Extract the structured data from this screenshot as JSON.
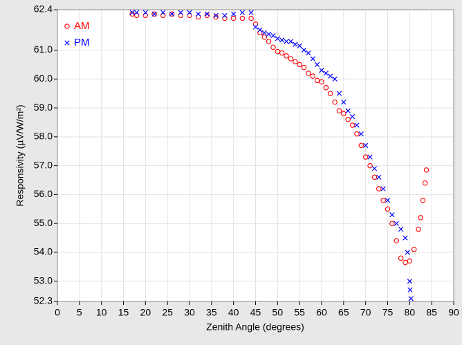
{
  "chart_data": {
    "type": "scatter",
    "xlabel": "Zenith Angle (degrees)",
    "ylabel": "Responsivity (µV/W/m²)",
    "xlim": [
      0,
      90
    ],
    "ylim": [
      52.3,
      62.4
    ],
    "xticks": [
      0,
      5,
      10,
      15,
      20,
      25,
      30,
      35,
      40,
      45,
      50,
      55,
      60,
      65,
      70,
      75,
      80,
      85,
      90
    ],
    "yticks": [
      52.3,
      {
        "value": 53,
        "label": "53.0"
      },
      {
        "value": 54,
        "label": "54.0"
      },
      {
        "value": 55,
        "label": "55.0"
      },
      {
        "value": 56,
        "label": "56.0"
      },
      {
        "value": 57,
        "label": "57.0"
      },
      {
        "value": 58,
        "label": "58.0"
      },
      {
        "value": 59,
        "label": "59.0"
      },
      {
        "value": 60,
        "label": "60.0"
      },
      {
        "value": 61,
        "label": "61.0"
      },
      62.4
    ],
    "grid": true,
    "legend": "upper-left",
    "series": [
      {
        "name": "AM",
        "color": "#ff0000",
        "marker": "circle",
        "x": [
          17,
          18,
          20,
          22,
          24,
          26,
          28,
          30,
          32,
          34,
          36,
          38,
          40,
          42,
          44,
          45,
          46,
          47,
          48,
          49,
          50,
          51,
          52,
          53,
          54,
          55,
          56,
          57,
          58,
          59,
          60,
          61,
          62,
          63,
          64,
          65,
          66,
          67,
          68,
          69,
          70,
          71,
          72,
          73,
          74,
          75,
          76,
          77,
          78,
          79,
          80,
          81,
          82,
          82.5,
          83,
          83.5,
          83.8
        ],
        "values": [
          62.25,
          62.2,
          62.2,
          62.25,
          62.2,
          62.25,
          62.2,
          62.2,
          62.15,
          62.2,
          62.15,
          62.1,
          62.1,
          62.1,
          62.1,
          61.9,
          61.6,
          61.45,
          61.3,
          61.1,
          60.95,
          60.9,
          60.8,
          60.7,
          60.6,
          60.5,
          60.4,
          60.2,
          60.1,
          59.95,
          59.9,
          59.7,
          59.5,
          59.2,
          58.9,
          58.8,
          58.6,
          58.4,
          58.1,
          57.7,
          57.3,
          57.0,
          56.6,
          56.2,
          55.8,
          55.5,
          55.0,
          54.4,
          53.8,
          53.65,
          53.7,
          54.1,
          54.8,
          55.2,
          55.8,
          56.4,
          56.85
        ]
      },
      {
        "name": "PM",
        "color": "#0000ff",
        "marker": "x",
        "x": [
          17,
          18,
          20,
          22,
          24,
          26,
          28,
          30,
          32,
          34,
          36,
          38,
          40,
          42,
          44,
          45,
          46,
          47,
          48,
          49,
          50,
          51,
          52,
          53,
          54,
          55,
          56,
          57,
          58,
          59,
          60,
          61,
          62,
          63,
          64,
          65,
          66,
          67,
          68,
          69,
          70,
          71,
          72,
          73,
          74,
          75,
          76,
          77,
          78,
          79,
          79.5,
          80,
          80.1,
          80.3
        ],
        "values": [
          62.3,
          62.3,
          62.3,
          62.25,
          62.3,
          62.25,
          62.3,
          62.3,
          62.25,
          62.25,
          62.2,
          62.2,
          62.25,
          62.3,
          62.3,
          61.8,
          61.7,
          61.6,
          61.55,
          61.5,
          61.4,
          61.35,
          61.3,
          61.3,
          61.2,
          61.15,
          61.0,
          60.9,
          60.7,
          60.5,
          60.3,
          60.2,
          60.1,
          60.0,
          59.5,
          59.2,
          58.9,
          58.7,
          58.4,
          58.1,
          57.7,
          57.3,
          56.9,
          56.6,
          56.2,
          55.8,
          55.3,
          55.0,
          54.8,
          54.5,
          54.0,
          53.0,
          52.7,
          52.4
        ]
      }
    ]
  }
}
